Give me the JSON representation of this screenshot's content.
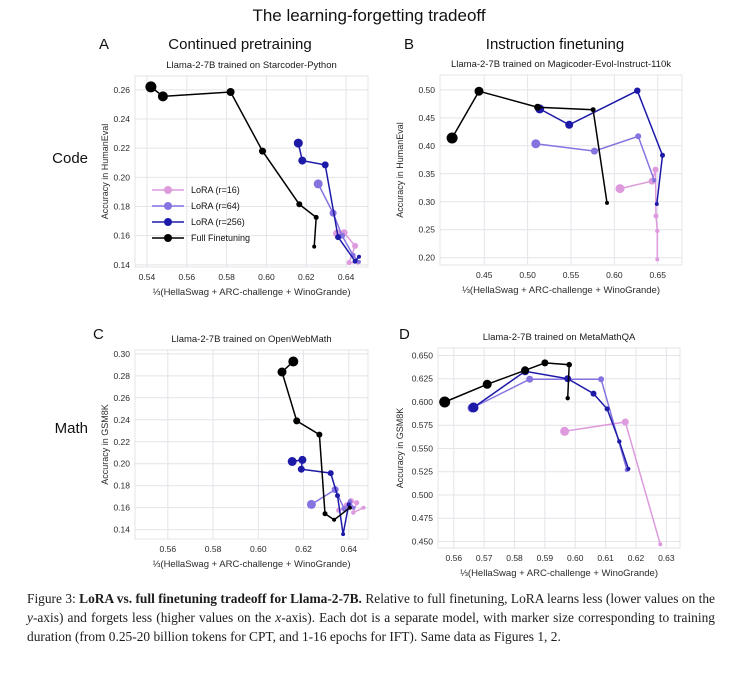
{
  "title": "The learning-forgetting tradeoff",
  "panel_letters": {
    "a": "A",
    "b": "B",
    "c": "C",
    "d": "D"
  },
  "column_headers": {
    "left": "Continued pretraining",
    "right": "Instruction finetuning"
  },
  "row_labels": {
    "top": "Code",
    "bottom": "Math"
  },
  "colors": {
    "lora_r16": "#dd9add",
    "lora_r64": "#8673e0",
    "lora_r256": "#1e1aa8",
    "full_ft": "#000000",
    "grid": "#e4e4e9",
    "text": "#2b2b2b"
  },
  "legend": {
    "items": [
      {
        "key": "lora_r16",
        "label": "LoRA (r=16)",
        "color": "#dd9add"
      },
      {
        "key": "lora_r64",
        "label": "LoRA (r=64)",
        "color": "#8673e0"
      },
      {
        "key": "lora_r256",
        "label": "LoRA (r=256)",
        "color": "#1e1aa8"
      },
      {
        "key": "full_ft",
        "label": "Full Finetuning",
        "color": "#000000"
      }
    ]
  },
  "chart_data": [
    {
      "id": "A",
      "type": "scatter",
      "title": "Llama-2-7B trained on Starcoder-Python",
      "xlabel": "⅓(HellaSwag + ARC-challenge + WinoGrande)",
      "ylabel": "Accuracy in HumanEval",
      "xlim": [
        0.534,
        0.651
      ],
      "ylim": [
        0.1385,
        0.2695
      ],
      "xticks": [
        0.54,
        0.56,
        0.58,
        0.6,
        0.62,
        0.64
      ],
      "yticks": [
        0.14,
        0.16,
        0.18,
        0.2,
        0.22,
        0.24,
        0.26
      ],
      "x_decimals": 2,
      "y_decimals": 2,
      "has_legend": true,
      "series": [
        {
          "key": "lora_r16",
          "name": "LoRA (r=16)",
          "color": "#dd9add",
          "points": [
            [
              0.6355,
              0.1615,
              4
            ],
            [
              0.639,
              0.162,
              3.5
            ],
            [
              0.6445,
              0.153,
              3
            ],
            [
              0.6415,
              0.1415,
              2.5
            ],
            [
              0.646,
              0.1415,
              2
            ]
          ]
        },
        {
          "key": "lora_r64",
          "name": "LoRA (r=64)",
          "color": "#8673e0",
          "points": [
            [
              0.626,
              0.1955,
              4.5
            ],
            [
              0.6335,
              0.1755,
              3.5
            ],
            [
              0.638,
              0.16,
              3
            ],
            [
              0.6435,
              0.1465,
              2.5
            ],
            [
              0.6465,
              0.142,
              2
            ]
          ]
        },
        {
          "key": "lora_r256",
          "name": "LoRA (r=256)",
          "color": "#1e1aa8",
          "points": [
            [
              0.616,
              0.2235,
              4.5
            ],
            [
              0.618,
              0.2115,
              4
            ],
            [
              0.6295,
              0.2085,
              3.5
            ],
            [
              0.636,
              0.159,
              3
            ],
            [
              0.6445,
              0.1425,
              2.5
            ],
            [
              0.6465,
              0.1455,
              2
            ]
          ]
        },
        {
          "key": "full_ft",
          "name": "Full Finetuning",
          "color": "#000000",
          "points": [
            [
              0.542,
              0.262,
              5.5
            ],
            [
              0.548,
              0.2555,
              5
            ],
            [
              0.582,
              0.2585,
              4
            ],
            [
              0.598,
              0.218,
              3.5
            ],
            [
              0.6165,
              0.1815,
              3
            ],
            [
              0.625,
              0.1725,
              2.5
            ],
            [
              0.624,
              0.1525,
              2
            ]
          ]
        }
      ]
    },
    {
      "id": "B",
      "type": "scatter",
      "title": "Llama-2-7B trained on Magicoder-Evol-Instruct-110k",
      "xlabel": "⅓(HellaSwag + ARC-challenge + WinoGrande)",
      "ylabel": "Accuracy in HumanEval",
      "xlim": [
        0.399,
        0.678
      ],
      "ylim": [
        0.187,
        0.5265
      ],
      "xticks": [
        0.45,
        0.5,
        0.55,
        0.6,
        0.65
      ],
      "yticks": [
        0.2,
        0.25,
        0.3,
        0.35,
        0.4,
        0.45,
        0.5
      ],
      "x_decimals": 2,
      "y_decimals": 2,
      "has_legend": false,
      "series": [
        {
          "key": "lora_r16",
          "name": "LoRA (r=16)",
          "color": "#dd9add",
          "points": [
            [
              0.6065,
              0.3235,
              4.5
            ],
            [
              0.6435,
              0.337,
              3.5
            ],
            [
              0.6475,
              0.3575,
              3
            ],
            [
              0.648,
              0.2745,
              2.5
            ],
            [
              0.6495,
              0.248,
              2.2
            ],
            [
              0.6495,
              0.197,
              2
            ]
          ]
        },
        {
          "key": "lora_r64",
          "name": "LoRA (r=64)",
          "color": "#8673e0",
          "points": [
            [
              0.5095,
              0.4035,
              4.5
            ],
            [
              0.577,
              0.3905,
              3.5
            ],
            [
              0.6275,
              0.417,
              3
            ],
            [
              0.646,
              0.3385,
              2.2
            ]
          ]
        },
        {
          "key": "lora_r256",
          "name": "LoRA (r=256)",
          "color": "#1e1aa8",
          "points": [
            [
              0.514,
              0.466,
              4.5
            ],
            [
              0.548,
              0.4375,
              4
            ],
            [
              0.6265,
              0.4985,
              3.2
            ],
            [
              0.6555,
              0.383,
              2.5
            ],
            [
              0.649,
              0.296,
              2
            ]
          ]
        },
        {
          "key": "full_ft",
          "name": "Full Finetuning",
          "color": "#000000",
          "points": [
            [
              0.413,
              0.414,
              5.5
            ],
            [
              0.444,
              0.4975,
              4.5
            ],
            [
              0.5115,
              0.469,
              3.5
            ],
            [
              0.5755,
              0.4645,
              2.5
            ],
            [
              0.5915,
              0.298,
              2
            ]
          ]
        }
      ]
    },
    {
      "id": "C",
      "type": "scatter",
      "title": "Llama-2-7B trained on OpenWebMath",
      "xlabel": "⅓(HellaSwag + ARC-challenge + WinoGrande)",
      "ylabel": "Accuracy in GSM8K",
      "xlim": [
        0.5455,
        0.6485
      ],
      "ylim": [
        0.1315,
        0.3035
      ],
      "xticks": [
        0.56,
        0.58,
        0.6,
        0.62,
        0.64
      ],
      "yticks": [
        0.14,
        0.16,
        0.18,
        0.2,
        0.22,
        0.24,
        0.26,
        0.28,
        0.3
      ],
      "x_decimals": 2,
      "y_decimals": 2,
      "has_legend": false,
      "series": [
        {
          "key": "lora_r16",
          "name": "LoRA (r=16)",
          "color": "#dd9add",
          "points": [
            [
              0.6355,
              0.1575,
              2.5
            ],
            [
              0.6395,
              0.1615,
              4
            ],
            [
              0.641,
              0.166,
              3
            ],
            [
              0.6435,
              0.1645,
              2.6
            ],
            [
              0.642,
              0.1555,
              2.2
            ],
            [
              0.6465,
              0.16,
              2
            ]
          ]
        },
        {
          "key": "lora_r64",
          "name": "LoRA (r=64)",
          "color": "#8673e0",
          "points": [
            [
              0.6235,
              0.163,
              4.5
            ],
            [
              0.634,
              0.1765,
              3.5
            ],
            [
              0.638,
              0.159,
              2.8
            ],
            [
              0.6405,
              0.1655,
              2.3
            ],
            [
              0.642,
              0.16,
              2
            ]
          ]
        },
        {
          "key": "lora_r256",
          "name": "LoRA (r=256)",
          "color": "#1e1aa8",
          "points": [
            [
              0.615,
              0.202,
              4.5
            ],
            [
              0.6195,
              0.2035,
              4
            ],
            [
              0.619,
              0.195,
              3.5
            ],
            [
              0.632,
              0.1915,
              3
            ],
            [
              0.635,
              0.171,
              2.5
            ],
            [
              0.6375,
              0.136,
              2
            ],
            [
              0.64,
              0.163,
              2
            ]
          ]
        },
        {
          "key": "full_ft",
          "name": "Full Finetuning",
          "color": "#000000",
          "points": [
            [
              0.6155,
              0.293,
              5
            ],
            [
              0.6105,
              0.2835,
              4.5
            ],
            [
              0.617,
              0.239,
              3.5
            ],
            [
              0.627,
              0.2265,
              3
            ],
            [
              0.6295,
              0.1545,
              2.5
            ],
            [
              0.6335,
              0.149,
              2
            ],
            [
              0.6405,
              0.16,
              2
            ]
          ]
        }
      ]
    },
    {
      "id": "D",
      "type": "scatter",
      "title": "Llama-2-7B trained on MetaMathQA",
      "xlabel": "⅓(HellaSwag + ARC-challenge + WinoGrande)",
      "ylabel": "Accuracy in GSM8K",
      "xlim": [
        0.5548,
        0.6345
      ],
      "ylim": [
        0.443,
        0.658
      ],
      "xticks": [
        0.56,
        0.57,
        0.58,
        0.59,
        0.6,
        0.61,
        0.62,
        0.63
      ],
      "yticks": [
        0.45,
        0.475,
        0.5,
        0.525,
        0.55,
        0.575,
        0.6,
        0.625,
        0.65
      ],
      "x_decimals": 2,
      "y_decimals": 3,
      "has_legend": false,
      "series": [
        {
          "key": "lora_r16",
          "name": "LoRA (r=16)",
          "color": "#dd9add",
          "points": [
            [
              0.5965,
              0.5685,
              4.5
            ],
            [
              0.6165,
              0.5785,
              3.5
            ],
            [
              0.628,
              0.447,
              2
            ]
          ]
        },
        {
          "key": "lora_r64",
          "name": "LoRA (r=64)",
          "color": "#8673e0",
          "points": [
            [
              0.566,
              0.5935,
              4.5
            ],
            [
              0.585,
              0.6245,
              3.5
            ],
            [
              0.6085,
              0.6245,
              3
            ],
            [
              0.617,
              0.527,
              2.2
            ]
          ]
        },
        {
          "key": "lora_r256",
          "name": "LoRA (r=256)",
          "color": "#1e1aa8",
          "points": [
            [
              0.5665,
              0.594,
              5
            ],
            [
              0.5835,
              0.633,
              4
            ],
            [
              0.5975,
              0.625,
              3.5
            ],
            [
              0.606,
              0.609,
              3
            ],
            [
              0.6105,
              0.5925,
              2.5
            ],
            [
              0.6145,
              0.5575,
              2.2
            ],
            [
              0.6175,
              0.528,
              2
            ]
          ]
        },
        {
          "key": "full_ft",
          "name": "Full Finetuning",
          "color": "#000000",
          "points": [
            [
              0.557,
              0.6,
              5.5
            ],
            [
              0.571,
              0.619,
              4.5
            ],
            [
              0.5835,
              0.634,
              4
            ],
            [
              0.59,
              0.642,
              3.5
            ],
            [
              0.598,
              0.64,
              2.8
            ],
            [
              0.5975,
              0.604,
              2.2
            ]
          ]
        }
      ]
    }
  ],
  "caption": {
    "segments": [
      {
        "text": "Figure 3: ",
        "style": "normal"
      },
      {
        "text": "LoRA vs. full finetuning tradeoff for Llama-2-7B.",
        "style": "bold"
      },
      {
        "text": " Relative to full finetuning, LoRA learns less (lower values on the ",
        "style": "normal"
      },
      {
        "text": "y",
        "style": "italic"
      },
      {
        "text": "-axis) and forgets less (higher values on the ",
        "style": "normal"
      },
      {
        "text": "x",
        "style": "italic"
      },
      {
        "text": "-axis). Each dot is a separate model, with marker size corresponding to training duration (from 0.25-20 billion tokens for CPT, and 1-16 epochs for IFT). Same data as Figures 1, 2.",
        "style": "normal"
      }
    ]
  }
}
